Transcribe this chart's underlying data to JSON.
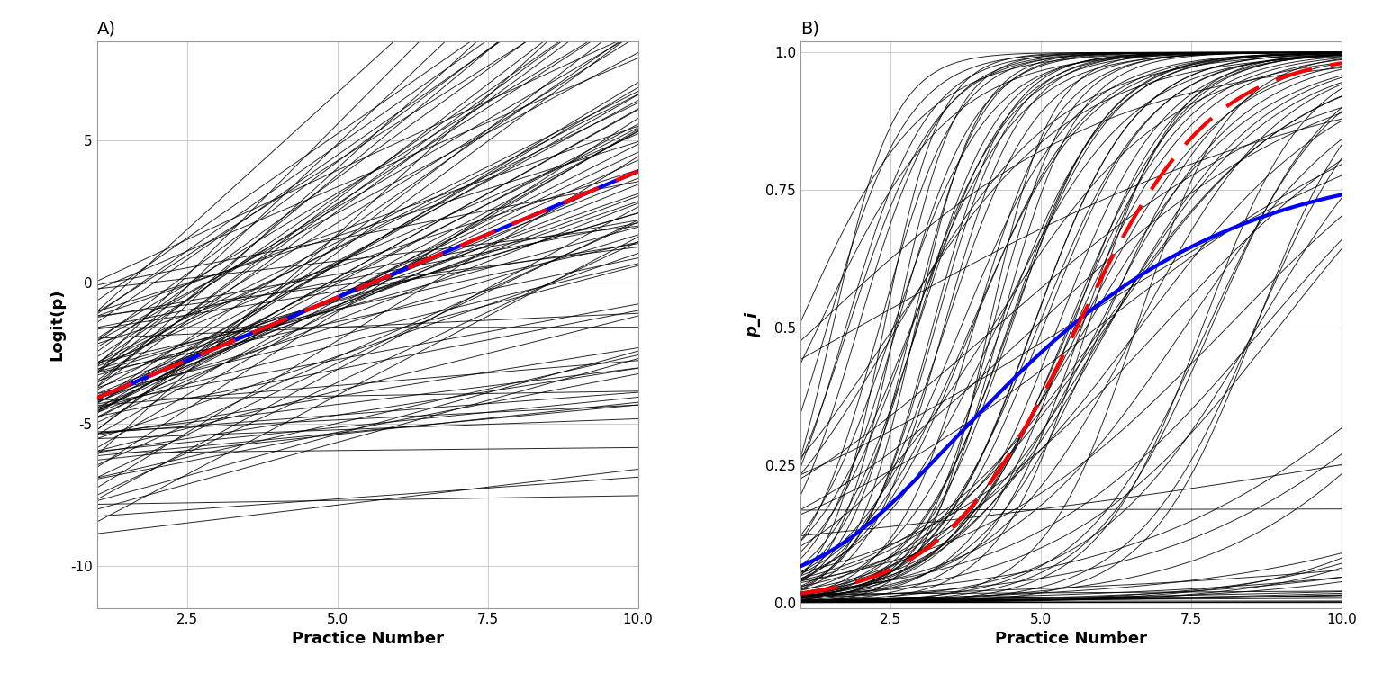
{
  "n_individuals": 100,
  "x_min": 1,
  "x_max": 10,
  "n_points": 300,
  "mean_intercept": -5.0,
  "mean_slope": 0.9,
  "sd_intercept": 2.0,
  "sd_slope": 0.6,
  "seed": 7,
  "logit_ylim": [
    -11.5,
    8.5
  ],
  "prob_ylim": [
    -0.01,
    1.02
  ],
  "logit_yticks": [
    -10,
    -5,
    0,
    5
  ],
  "prob_yticks": [
    0.0,
    0.25,
    0.5,
    0.75,
    1.0
  ],
  "xticks": [
    2.5,
    5.0,
    7.5,
    10.0
  ],
  "xlabel": "Practice Number",
  "ylabel_left": "Logit(p)",
  "ylabel_right": "p_i",
  "title_left": "A)",
  "title_right": "B)",
  "individual_color": "#000000",
  "individual_lw": 0.7,
  "individual_alpha": 0.85,
  "avg_logit_color": "#0000FF",
  "avg_logit_lw": 3.0,
  "avg_prob_color": "#FF0000",
  "avg_prob_lw": 3.0,
  "avg_prob_dash": [
    10,
    5
  ],
  "background_color": "#FFFFFF",
  "grid_color": "#C8C8C8",
  "grid_alpha": 0.9,
  "title_fontsize": 14,
  "label_fontsize": 13,
  "tick_fontsize": 11
}
